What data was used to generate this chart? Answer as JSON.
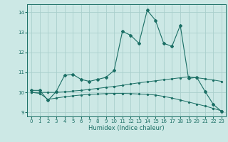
{
  "xlabel": "Humidex (Indice chaleur)",
  "xlim": [
    -0.5,
    23.5
  ],
  "ylim": [
    8.8,
    14.4
  ],
  "yticks": [
    9,
    10,
    11,
    12,
    13,
    14
  ],
  "xticks": [
    0,
    1,
    2,
    3,
    4,
    5,
    6,
    7,
    8,
    9,
    10,
    11,
    12,
    13,
    14,
    15,
    16,
    17,
    18,
    19,
    20,
    21,
    22,
    23
  ],
  "bg_color": "#cce8e5",
  "grid_color": "#aacfcc",
  "line_color": "#1a6e64",
  "line1_x": [
    0,
    1,
    2,
    3,
    4,
    5,
    6,
    7,
    8,
    9,
    10,
    11,
    12,
    13,
    14,
    15,
    16,
    17,
    18,
    19,
    20,
    21,
    22,
    23
  ],
  "line1_y": [
    10.1,
    10.1,
    9.6,
    10.05,
    10.85,
    10.9,
    10.65,
    10.55,
    10.65,
    10.75,
    11.1,
    13.05,
    12.85,
    12.45,
    14.1,
    13.6,
    12.45,
    12.3,
    13.35,
    10.7,
    10.75,
    10.05,
    9.4,
    9.05
  ],
  "line2_x": [
    0,
    1,
    2,
    3,
    4,
    5,
    6,
    7,
    8,
    9,
    10,
    11,
    12,
    13,
    14,
    15,
    16,
    17,
    18,
    19,
    20,
    21,
    22,
    23
  ],
  "line2_y": [
    10.0,
    10.0,
    10.0,
    10.0,
    10.03,
    10.07,
    10.1,
    10.15,
    10.2,
    10.25,
    10.3,
    10.35,
    10.42,
    10.48,
    10.53,
    10.58,
    10.63,
    10.68,
    10.73,
    10.78,
    10.73,
    10.68,
    10.62,
    10.55
  ],
  "line3_x": [
    0,
    1,
    2,
    3,
    4,
    5,
    6,
    7,
    8,
    9,
    10,
    11,
    12,
    13,
    14,
    15,
    16,
    17,
    18,
    19,
    20,
    21,
    22,
    23
  ],
  "line3_y": [
    10.0,
    9.95,
    9.65,
    9.72,
    9.78,
    9.83,
    9.87,
    9.9,
    9.92,
    9.94,
    9.95,
    9.95,
    9.94,
    9.92,
    9.9,
    9.87,
    9.8,
    9.72,
    9.62,
    9.52,
    9.42,
    9.32,
    9.2,
    9.08
  ]
}
